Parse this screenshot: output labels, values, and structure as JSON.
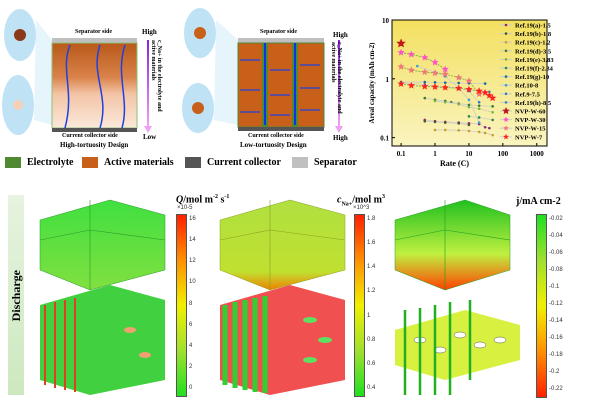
{
  "diagram_left": {
    "separator": "Separator side",
    "collector": "Current collector side",
    "title": "High-tortuosity Design",
    "top": "High",
    "bottom": "Low",
    "axis": "c_Na+ in the electrolyte and active materials",
    "ion": "Na+"
  },
  "diagram_right": {
    "separator": "Separator side",
    "collector": "Current collector side",
    "title": "Low-tortuosity Design",
    "top": "High",
    "bottom": "High",
    "axis": "c_Na+ in the electrolyte and active materials",
    "ion": "Na+"
  },
  "legend": [
    {
      "label": "Electrolyte",
      "color": "#4f8a33"
    },
    {
      "label": "Active materials",
      "color": "#c8601a"
    },
    {
      "label": "Current collector",
      "color": "#555555"
    },
    {
      "label": "Separator",
      "color": "#c0c0c0"
    }
  ],
  "chart_data": {
    "type": "scatter",
    "xlabel": "Rate (C)",
    "ylabel": "Areal capacity (mAh cm-2)",
    "xscale": "log",
    "yscale": "log",
    "xlim": [
      0.054,
      2000
    ],
    "ylim": [
      0.072,
      10
    ],
    "xticks": [
      "0.1",
      "1",
      "10",
      "100",
      "1000"
    ],
    "yticks": [
      "0.1",
      "1",
      "10"
    ],
    "legend_placement": "right",
    "background": "#f5e97a",
    "series": [
      {
        "name": "Ref.19(a)-1.5",
        "color": "#8a2a6a",
        "marker": "dot",
        "x": [
          0.5,
          1,
          2,
          5,
          10,
          20,
          30,
          40
        ],
        "y": [
          0.2,
          0.19,
          0.185,
          0.18,
          0.175,
          0.17,
          0.15,
          0.145
        ]
      },
      {
        "name": "Ref.19(b)-1.8",
        "color": "#555522",
        "marker": "dot",
        "x": [
          0.5,
          1,
          2,
          5,
          10
        ],
        "y": [
          0.19,
          0.185,
          0.18,
          0.175,
          0.165
        ]
      },
      {
        "name": "Ref.19(c)-1.2",
        "color": "#c9a030",
        "marker": "dot",
        "x": [
          1,
          2,
          5,
          10,
          20,
          30,
          50
        ],
        "y": [
          0.135,
          0.135,
          0.133,
          0.13,
          0.125,
          0.12,
          0.11
        ]
      },
      {
        "name": "Ref.19(d)-3.5",
        "color": "#3a7a2a",
        "marker": "dot",
        "x": [
          0.5,
          1,
          2,
          3,
          5,
          10,
          20,
          50
        ],
        "y": [
          0.47,
          0.44,
          0.42,
          0.4,
          0.38,
          0.36,
          0.35,
          0.34
        ]
      },
      {
        "name": "Ref.19(e)-3.83",
        "color": "#7ab830",
        "marker": "dot",
        "x": [
          1,
          2,
          5,
          10,
          20,
          50
        ],
        "y": [
          0.42,
          0.4,
          0.37,
          0.33,
          0.31,
          0.27
        ]
      },
      {
        "name": "Ref.19(f)-2.34",
        "color": "#2a8a4a",
        "marker": "dot",
        "x": [
          10,
          20,
          50
        ],
        "y": [
          0.23,
          0.22,
          0.2
        ]
      },
      {
        "name": "Ref.19(g)-10",
        "color": "#1a6aa0",
        "marker": "dot",
        "x": [
          0.1,
          0.5,
          1,
          2,
          5,
          10,
          30
        ],
        "y": [
          0.88,
          0.88,
          0.87,
          0.86,
          0.85,
          0.84,
          0.83
        ]
      },
      {
        "name": "Ref.10-8",
        "color": "#3aa0d0",
        "marker": "dot",
        "x": [
          0.3,
          1,
          2,
          5,
          10,
          20
        ],
        "y": [
          1.65,
          1.3,
          1.1,
          0.7,
          0.44,
          0.18
        ]
      },
      {
        "name": "Ref.9-7.5",
        "color": "#2a7ad0",
        "marker": "dot",
        "x": [
          0.1,
          0.5,
          1,
          5,
          10,
          20
        ],
        "y": [
          0.85,
          0.8,
          0.75,
          0.7,
          0.62,
          0.4
        ]
      },
      {
        "name": "Ref.19(h)-8.5",
        "color": "#3a8ab0",
        "marker": "dot",
        "x": [
          10,
          20,
          40
        ],
        "y": [
          0.65,
          0.62,
          0.6
        ]
      },
      {
        "name": "NVP-W-60",
        "color": "#c01818",
        "marker": "star",
        "x": [
          0.1
        ],
        "y": [
          4.0
        ]
      },
      {
        "name": "NVP-W-30",
        "color": "#ff50c8",
        "marker": "star",
        "x": [
          0.1,
          0.2,
          0.5,
          1,
          2
        ],
        "y": [
          2.8,
          2.6,
          2.3,
          1.9,
          1.45
        ]
      },
      {
        "name": "NVP-W-15",
        "color": "#f07878",
        "marker": "star",
        "x": [
          0.1,
          0.2,
          0.5,
          1,
          2,
          5,
          10,
          20
        ],
        "y": [
          1.6,
          1.4,
          1.3,
          1.25,
          1.2,
          1.05,
          0.92,
          0.55
        ]
      },
      {
        "name": "NVP-W-7",
        "color": "#ff2020",
        "marker": "star",
        "x": [
          0.1,
          0.2,
          0.5,
          1,
          2,
          5,
          10,
          20,
          30,
          40,
          50
        ],
        "y": [
          0.82,
          0.77,
          0.74,
          0.73,
          0.71,
          0.69,
          0.66,
          0.62,
          0.58,
          0.52,
          0.47
        ]
      }
    ]
  },
  "bottom": {
    "side_label": "Discharge",
    "panels": [
      {
        "title": "Q/mol m-2 s-1",
        "title_main": "Q",
        "title_unit": "/mol m",
        "sup1": "-2",
        "mid": " s",
        "sup2": "-1",
        "scale": "×10-5",
        "ticks": [
          "16",
          "14",
          "12",
          "10",
          "8",
          "6",
          "4",
          "2",
          "0"
        ],
        "gradient": [
          "#ff2000",
          "#ff9000",
          "#f0f000",
          "#a0e030",
          "#20e020"
        ]
      },
      {
        "title": "cNa+/mol m3",
        "title_main": "c",
        "sub": "Na+",
        "title_unit": "/mol m",
        "sup1": "3",
        "scale": "×10^3",
        "ticks": [
          "1.8",
          "1.6",
          "1.4",
          "1.2",
          "1",
          "0.8",
          "0.6",
          "0.4"
        ],
        "gradient": [
          "#ff2000",
          "#ff9000",
          "#f0f000",
          "#a0e030",
          "#20e020"
        ]
      },
      {
        "title": "j/mA cm-2",
        "title_main": "j",
        "title_unit": "/mA cm",
        "sup1": "-2",
        "ticks": [
          "-0.02",
          "-0.04",
          "-0.06",
          "-0.08",
          "-0.1",
          "-0.12",
          "-0.14",
          "-0.16",
          "-0.18",
          "-0.2",
          "-0.22"
        ],
        "gradient": [
          "#20e020",
          "#a0e030",
          "#f0f000",
          "#ff9000",
          "#ff2000"
        ]
      }
    ]
  }
}
